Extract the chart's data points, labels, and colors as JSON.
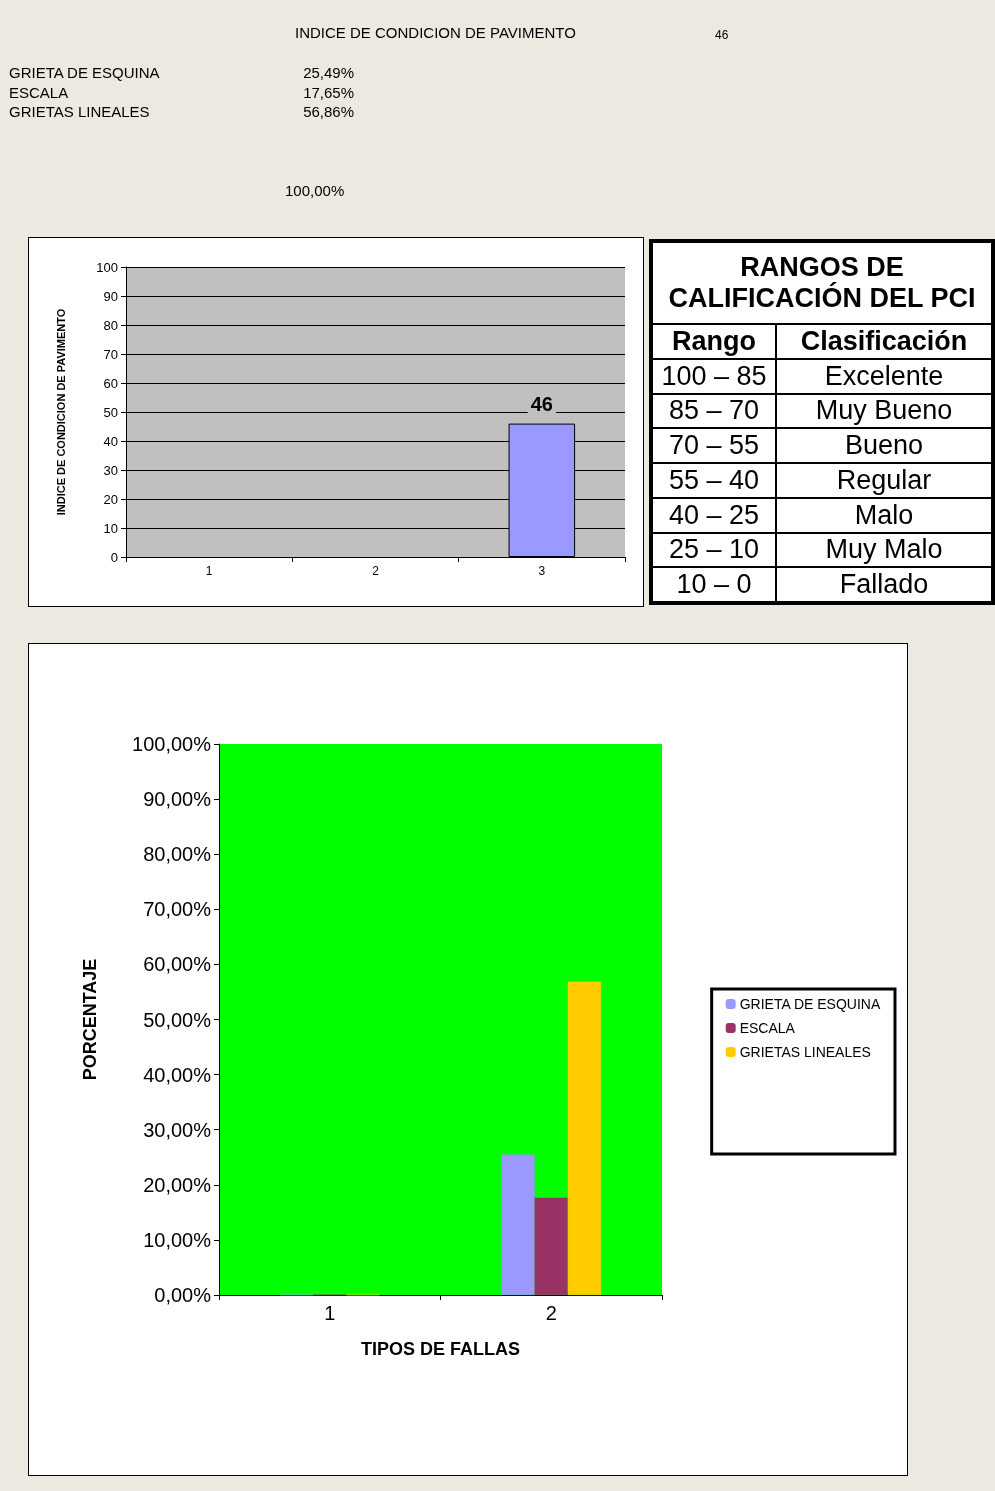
{
  "chart_data": [
    {
      "type": "other",
      "title": "INDICE DE CONDICION DE PAVIMENTO",
      "annotations": [
        "46",
        "GRIETA DE ESQUINA",
        "25,49%",
        "ESCALA",
        "17,65%",
        "GRIETAS LINEALES",
        "56,86%",
        "100,00%"
      ]
    },
    {
      "type": "bar",
      "ylabel": "INDICE DE CONDICION DE PAVIMENTO",
      "categories": [
        "1",
        "2",
        "3"
      ],
      "values": [
        null,
        null,
        46
      ],
      "color": "#9999ff",
      "ylim": [
        0,
        100
      ],
      "yticks": [
        0,
        10,
        20,
        30,
        40,
        50,
        60,
        70,
        80,
        90,
        100
      ],
      "grid": "y",
      "data_labels": true
    },
    {
      "type": "other",
      "title": "RANGOS DE CALIFICACIÓN DEL PCI",
      "annotations": [
        "Rango",
        "Clasificación",
        "100 – 85",
        "Excelente",
        "85 – 70",
        "Muy Bueno",
        "70 – 55",
        "Bueno",
        "55 – 40",
        "Regular",
        "40 – 25",
        "Malo",
        "25 – 10",
        "Muy Malo",
        "10 – 0",
        "Fallado"
      ]
    },
    {
      "type": "bar",
      "xlabel": "TIPOS DE FALLAS",
      "ylabel": "PORCENTAJE",
      "categories": [
        "1",
        "2"
      ],
      "legend": "right",
      "series": [
        {
          "name": "GRIETA DE ESQUINA",
          "color": "#9999ff",
          "values": [
            0,
            25.49
          ]
        },
        {
          "name": "ESCALA",
          "color": "#993366",
          "values": [
            0,
            17.65
          ]
        },
        {
          "name": "GRIETAS LINEALES",
          "color": "#ffcc00",
          "values": [
            0,
            56.86
          ]
        }
      ],
      "ylim": [
        0,
        100
      ],
      "yticks": [
        {
          "value": 0,
          "label": "0,00%"
        },
        {
          "value": 10,
          "label": "10,00%"
        },
        {
          "value": 20,
          "label": "20,00%"
        },
        {
          "value": 30,
          "label": "30,00%"
        },
        {
          "value": 40,
          "label": "40,00%"
        },
        {
          "value": 50,
          "label": "50,00%"
        },
        {
          "value": 60,
          "label": "60,00%"
        },
        {
          "value": 70,
          "label": "70,00%"
        },
        {
          "value": 80,
          "label": "80,00%"
        },
        {
          "value": 90,
          "label": "90,00%"
        },
        {
          "value": 100,
          "label": "100,00%"
        }
      ],
      "grid": false
    }
  ]
}
